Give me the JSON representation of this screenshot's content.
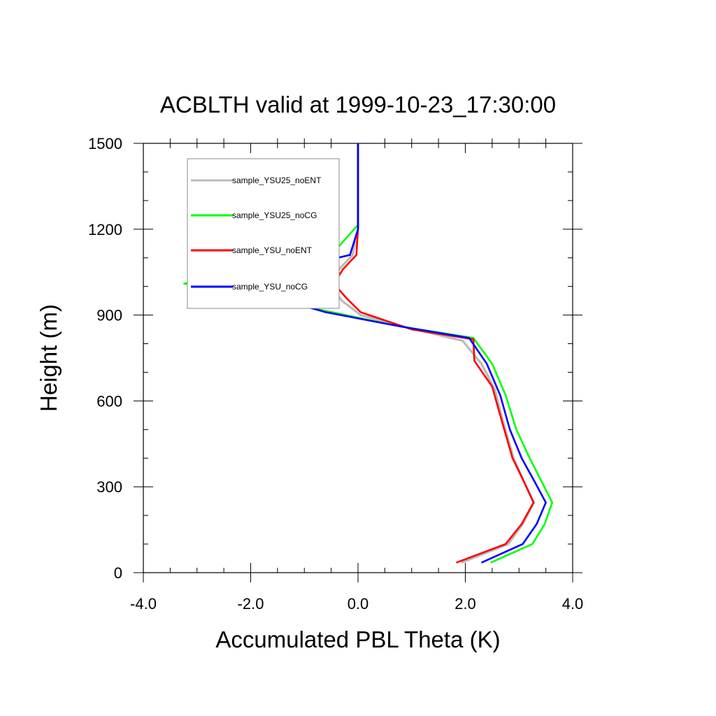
{
  "chart_data": {
    "type": "line",
    "title": "ACBLTH valid at 1999-10-23_17:30:00",
    "xlabel": "Accumulated PBL Theta (K)",
    "ylabel": "Height (m)",
    "xlim": [
      -4.0,
      4.0
    ],
    "ylim": [
      0,
      1500
    ],
    "xticks": [
      -4.0,
      -2.0,
      0.0,
      2.0,
      4.0
    ],
    "xtick_labels": [
      "-4.0",
      "-2.0",
      "0.0",
      "2.0",
      "4.0"
    ],
    "yticks": [
      0,
      300,
      600,
      900,
      1200,
      1500
    ],
    "ytick_labels": [
      "0",
      "300",
      "600",
      "900",
      "1200",
      "1500"
    ],
    "legend_position": "top-left",
    "grid": false,
    "series": [
      {
        "name": "sample_YSU25_noENT",
        "color": "#bbbbbb",
        "points": [
          [
            1.93,
            35
          ],
          [
            2.8,
            100
          ],
          [
            3.07,
            170
          ],
          [
            3.28,
            245
          ],
          [
            3.1,
            315
          ],
          [
            2.9,
            400
          ],
          [
            2.7,
            530
          ],
          [
            2.55,
            640
          ],
          [
            2.3,
            730
          ],
          [
            1.95,
            810
          ],
          [
            0.85,
            860
          ],
          [
            0.05,
            900
          ],
          [
            -0.3,
            950
          ],
          [
            -0.5,
            1000
          ],
          [
            -0.35,
            1060
          ],
          [
            -0.1,
            1110
          ],
          [
            0.0,
            1200
          ],
          [
            0.0,
            1300
          ],
          [
            0.0,
            1500
          ]
        ]
      },
      {
        "name": "sample_YSU25_noCG",
        "color": "#00ff00",
        "points": [
          [
            2.47,
            35
          ],
          [
            3.25,
            100
          ],
          [
            3.48,
            170
          ],
          [
            3.62,
            245
          ],
          [
            3.43,
            315
          ],
          [
            3.2,
            400
          ],
          [
            2.95,
            500
          ],
          [
            2.75,
            620
          ],
          [
            2.5,
            730
          ],
          [
            2.15,
            820
          ],
          [
            0.8,
            860
          ],
          [
            -1.0,
            930
          ],
          [
            -2.2,
            980
          ],
          [
            -3.25,
            1010
          ],
          [
            -2.0,
            1050
          ],
          [
            -0.5,
            1110
          ],
          [
            0.0,
            1215
          ],
          [
            0.0,
            1300
          ],
          [
            0.0,
            1500
          ]
        ]
      },
      {
        "name": "sample_YSU_noENT",
        "color": "#ff0000",
        "points": [
          [
            1.83,
            35
          ],
          [
            2.75,
            100
          ],
          [
            3.05,
            170
          ],
          [
            3.27,
            245
          ],
          [
            3.1,
            315
          ],
          [
            2.88,
            400
          ],
          [
            2.68,
            530
          ],
          [
            2.5,
            650
          ],
          [
            2.17,
            740
          ],
          [
            2.15,
            815
          ],
          [
            1.0,
            850
          ],
          [
            0.05,
            910
          ],
          [
            -0.22,
            960
          ],
          [
            -0.45,
            1010
          ],
          [
            -0.28,
            1060
          ],
          [
            -0.03,
            1110
          ],
          [
            0.0,
            1200
          ],
          [
            0.0,
            1500
          ]
        ]
      },
      {
        "name": "sample_YSU_noCG",
        "color": "#0000ff",
        "points": [
          [
            2.3,
            35
          ],
          [
            3.07,
            100
          ],
          [
            3.33,
            170
          ],
          [
            3.5,
            245
          ],
          [
            3.3,
            315
          ],
          [
            3.05,
            400
          ],
          [
            2.83,
            500
          ],
          [
            2.65,
            620
          ],
          [
            2.4,
            730
          ],
          [
            2.07,
            820
          ],
          [
            0.8,
            860
          ],
          [
            -0.6,
            910
          ],
          [
            -1.55,
            960
          ],
          [
            -2.3,
            1010
          ],
          [
            -1.3,
            1060
          ],
          [
            -0.15,
            1110
          ],
          [
            0.0,
            1200
          ],
          [
            0.0,
            1500
          ]
        ]
      }
    ]
  }
}
